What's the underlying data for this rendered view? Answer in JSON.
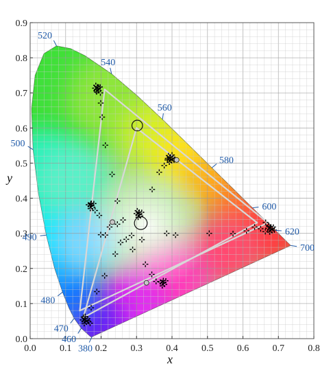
{
  "chart_data": {
    "type": "scatter",
    "title": "",
    "xlabel": "x",
    "ylabel": "y",
    "xlim": [
      0,
      0.8
    ],
    "ylim": [
      0,
      0.9
    ],
    "grid": true,
    "xticks": [
      "0.0",
      "0.1",
      "0.2",
      "0.3",
      "0.4",
      "0.5",
      "0.6",
      "0.7",
      "0.8"
    ],
    "yticks": [
      "0.0",
      "0.1",
      "0.2",
      "0.3",
      "0.4",
      "0.5",
      "0.6",
      "0.7",
      "0.8",
      "0.9"
    ],
    "spectral_locus": [
      {
        "nm": "380",
        "x": 0.1741,
        "y": 0.005
      },
      {
        "nm": "",
        "x": 0.1738,
        "y": 0.0049
      },
      {
        "nm": "",
        "x": 0.1733,
        "y": 0.0048
      },
      {
        "nm": "",
        "x": 0.1726,
        "y": 0.0048
      },
      {
        "nm": "",
        "x": 0.1714,
        "y": 0.0051
      },
      {
        "nm": "",
        "x": 0.1689,
        "y": 0.0069
      },
      {
        "nm": "",
        "x": 0.1644,
        "y": 0.0109
      },
      {
        "nm": "460",
        "x": 0.144,
        "y": 0.0297
      },
      {
        "nm": "470",
        "x": 0.1241,
        "y": 0.0578
      },
      {
        "nm": "",
        "x": 0.1096,
        "y": 0.0868
      },
      {
        "nm": "480",
        "x": 0.0913,
        "y": 0.1327
      },
      {
        "nm": "",
        "x": 0.0687,
        "y": 0.2007
      },
      {
        "nm": "490",
        "x": 0.0454,
        "y": 0.295
      },
      {
        "nm": "",
        "x": 0.0235,
        "y": 0.4127
      },
      {
        "nm": "500",
        "x": 0.0082,
        "y": 0.5384
      },
      {
        "nm": "",
        "x": 0.0039,
        "y": 0.6548
      },
      {
        "nm": "",
        "x": 0.0139,
        "y": 0.7502
      },
      {
        "nm": "",
        "x": 0.0389,
        "y": 0.812
      },
      {
        "nm": "520",
        "x": 0.0743,
        "y": 0.8338
      },
      {
        "nm": "",
        "x": 0.1142,
        "y": 0.8262
      },
      {
        "nm": "",
        "x": 0.1547,
        "y": 0.8059
      },
      {
        "nm": "540",
        "x": 0.2296,
        "y": 0.7543
      },
      {
        "nm": "",
        "x": 0.3016,
        "y": 0.6923
      },
      {
        "nm": "560",
        "x": 0.3731,
        "y": 0.6245
      },
      {
        "nm": "",
        "x": 0.4441,
        "y": 0.5547
      },
      {
        "nm": "580",
        "x": 0.5125,
        "y": 0.4866
      },
      {
        "nm": "",
        "x": 0.5752,
        "y": 0.4242
      },
      {
        "nm": "600",
        "x": 0.627,
        "y": 0.3725
      },
      {
        "nm": "",
        "x": 0.6658,
        "y": 0.334
      },
      {
        "nm": "620",
        "x": 0.6915,
        "y": 0.3083
      },
      {
        "nm": "",
        "x": 0.7079,
        "y": 0.292
      },
      {
        "nm": "",
        "x": 0.719,
        "y": 0.2809
      },
      {
        "nm": "",
        "x": 0.726,
        "y": 0.274
      },
      {
        "nm": "",
        "x": 0.73,
        "y": 0.27
      },
      {
        "nm": "",
        "x": 0.7334,
        "y": 0.2666
      },
      {
        "nm": "700",
        "x": 0.7347,
        "y": 0.2653
      }
    ],
    "triangles": [
      {
        "name": "",
        "color": "#d8d8d8",
        "vertices": [
          [
            0.64,
            0.33
          ],
          [
            0.3,
            0.6
          ],
          [
            0.15,
            0.06
          ]
        ]
      },
      {
        "name": "",
        "color": "#d8d8d8",
        "vertices": [
          [
            0.67,
            0.33
          ],
          [
            0.21,
            0.71
          ],
          [
            0.14,
            0.08
          ]
        ]
      }
    ],
    "markers_cross": [
      [
        0.186,
        0.706
      ],
      [
        0.193,
        0.716
      ],
      [
        0.198,
        0.7
      ],
      [
        0.199,
        0.671
      ],
      [
        0.203,
        0.631
      ],
      [
        0.212,
        0.551
      ],
      [
        0.231,
        0.468
      ],
      [
        0.246,
        0.392
      ],
      [
        0.262,
        0.338
      ],
      [
        0.271,
        0.283
      ],
      [
        0.255,
        0.274
      ],
      [
        0.286,
        0.294
      ],
      [
        0.246,
        0.326
      ],
      [
        0.224,
        0.318
      ],
      [
        0.24,
        0.241
      ],
      [
        0.289,
        0.254
      ],
      [
        0.315,
        0.282
      ],
      [
        0.325,
        0.212
      ],
      [
        0.343,
        0.183
      ],
      [
        0.355,
        0.163
      ],
      [
        0.21,
        0.179
      ],
      [
        0.188,
        0.134
      ],
      [
        0.364,
        0.474
      ],
      [
        0.378,
        0.493
      ],
      [
        0.344,
        0.425
      ],
      [
        0.385,
        0.3
      ],
      [
        0.41,
        0.295
      ],
      [
        0.505,
        0.3
      ],
      [
        0.572,
        0.299
      ],
      [
        0.61,
        0.307
      ],
      [
        0.633,
        0.318
      ],
      [
        0.65,
        0.313
      ],
      [
        0.663,
        0.305
      ],
      [
        0.664,
        0.331
      ],
      [
        0.673,
        0.32
      ],
      [
        0.4,
        0.523
      ],
      [
        0.387,
        0.509
      ],
      [
        0.171,
        0.384
      ],
      [
        0.183,
        0.365
      ],
      [
        0.195,
        0.351
      ],
      [
        0.199,
        0.296
      ],
      [
        0.212,
        0.295
      ],
      [
        0.169,
        0.044
      ],
      [
        0.155,
        0.063
      ],
      [
        0.172,
        0.088
      ]
    ],
    "markers_cluster": [
      {
        "x": 0.19,
        "y": 0.712,
        "n": 8
      },
      {
        "x": 0.395,
        "y": 0.512,
        "n": 9
      },
      {
        "x": 0.172,
        "y": 0.38,
        "n": 7
      },
      {
        "x": 0.307,
        "y": 0.355,
        "n": 8
      },
      {
        "x": 0.375,
        "y": 0.16,
        "n": 7
      },
      {
        "x": 0.678,
        "y": 0.313,
        "n": 9
      },
      {
        "x": 0.155,
        "y": 0.052,
        "n": 9
      }
    ],
    "markers_dot": [
      [
        0.232,
        0.332
      ],
      [
        0.413,
        0.509
      ],
      [
        0.328,
        0.159
      ]
    ],
    "markers_circle": [
      {
        "x": 0.312,
        "y": 0.329,
        "r": 0.018
      },
      {
        "x": 0.302,
        "y": 0.607,
        "r": 0.015
      }
    ]
  }
}
